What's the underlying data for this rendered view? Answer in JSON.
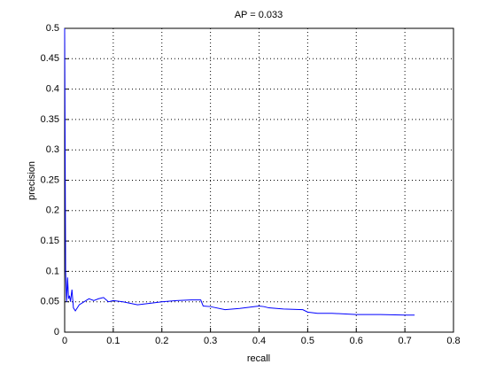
{
  "chart_data": {
    "type": "line",
    "title": "AP = 0.033",
    "x_label": "recall",
    "y_label": "precision",
    "x": [
      0,
      0.002,
      0.004,
      0.006,
      0.008,
      0.01,
      0.012,
      0.015,
      0.018,
      0.022,
      0.03,
      0.04,
      0.05,
      0.06,
      0.07,
      0.08,
      0.09,
      0.1,
      0.12,
      0.15,
      0.18,
      0.2,
      0.23,
      0.26,
      0.28,
      0.285,
      0.3,
      0.33,
      0.36,
      0.4,
      0.41,
      0.42,
      0.45,
      0.49,
      0.5,
      0.52,
      0.55,
      0.6,
      0.65,
      0.7,
      0.72
    ],
    "values": [
      0.5,
      0.1,
      0.05,
      0.09,
      0.055,
      0.06,
      0.05,
      0.07,
      0.04,
      0.035,
      0.045,
      0.05,
      0.055,
      0.052,
      0.055,
      0.057,
      0.05,
      0.052,
      0.05,
      0.045,
      0.048,
      0.05,
      0.052,
      0.053,
      0.053,
      0.043,
      0.042,
      0.037,
      0.039,
      0.043,
      0.042,
      0.04,
      0.038,
      0.037,
      0.033,
      0.031,
      0.031,
      0.029,
      0.029,
      0.028,
      0.028
    ],
    "color": "#0000ff",
    "xlim": [
      0,
      0.8
    ],
    "xticks": [
      0,
      0.1,
      0.2,
      0.3,
      0.4,
      0.5,
      0.6,
      0.7,
      0.8
    ],
    "ylim": [
      0,
      0.5
    ],
    "yticks": [
      0,
      0.05,
      0.1,
      0.15,
      0.2,
      0.25,
      0.3,
      0.35,
      0.4,
      0.45,
      0.5
    ],
    "grid": true
  }
}
